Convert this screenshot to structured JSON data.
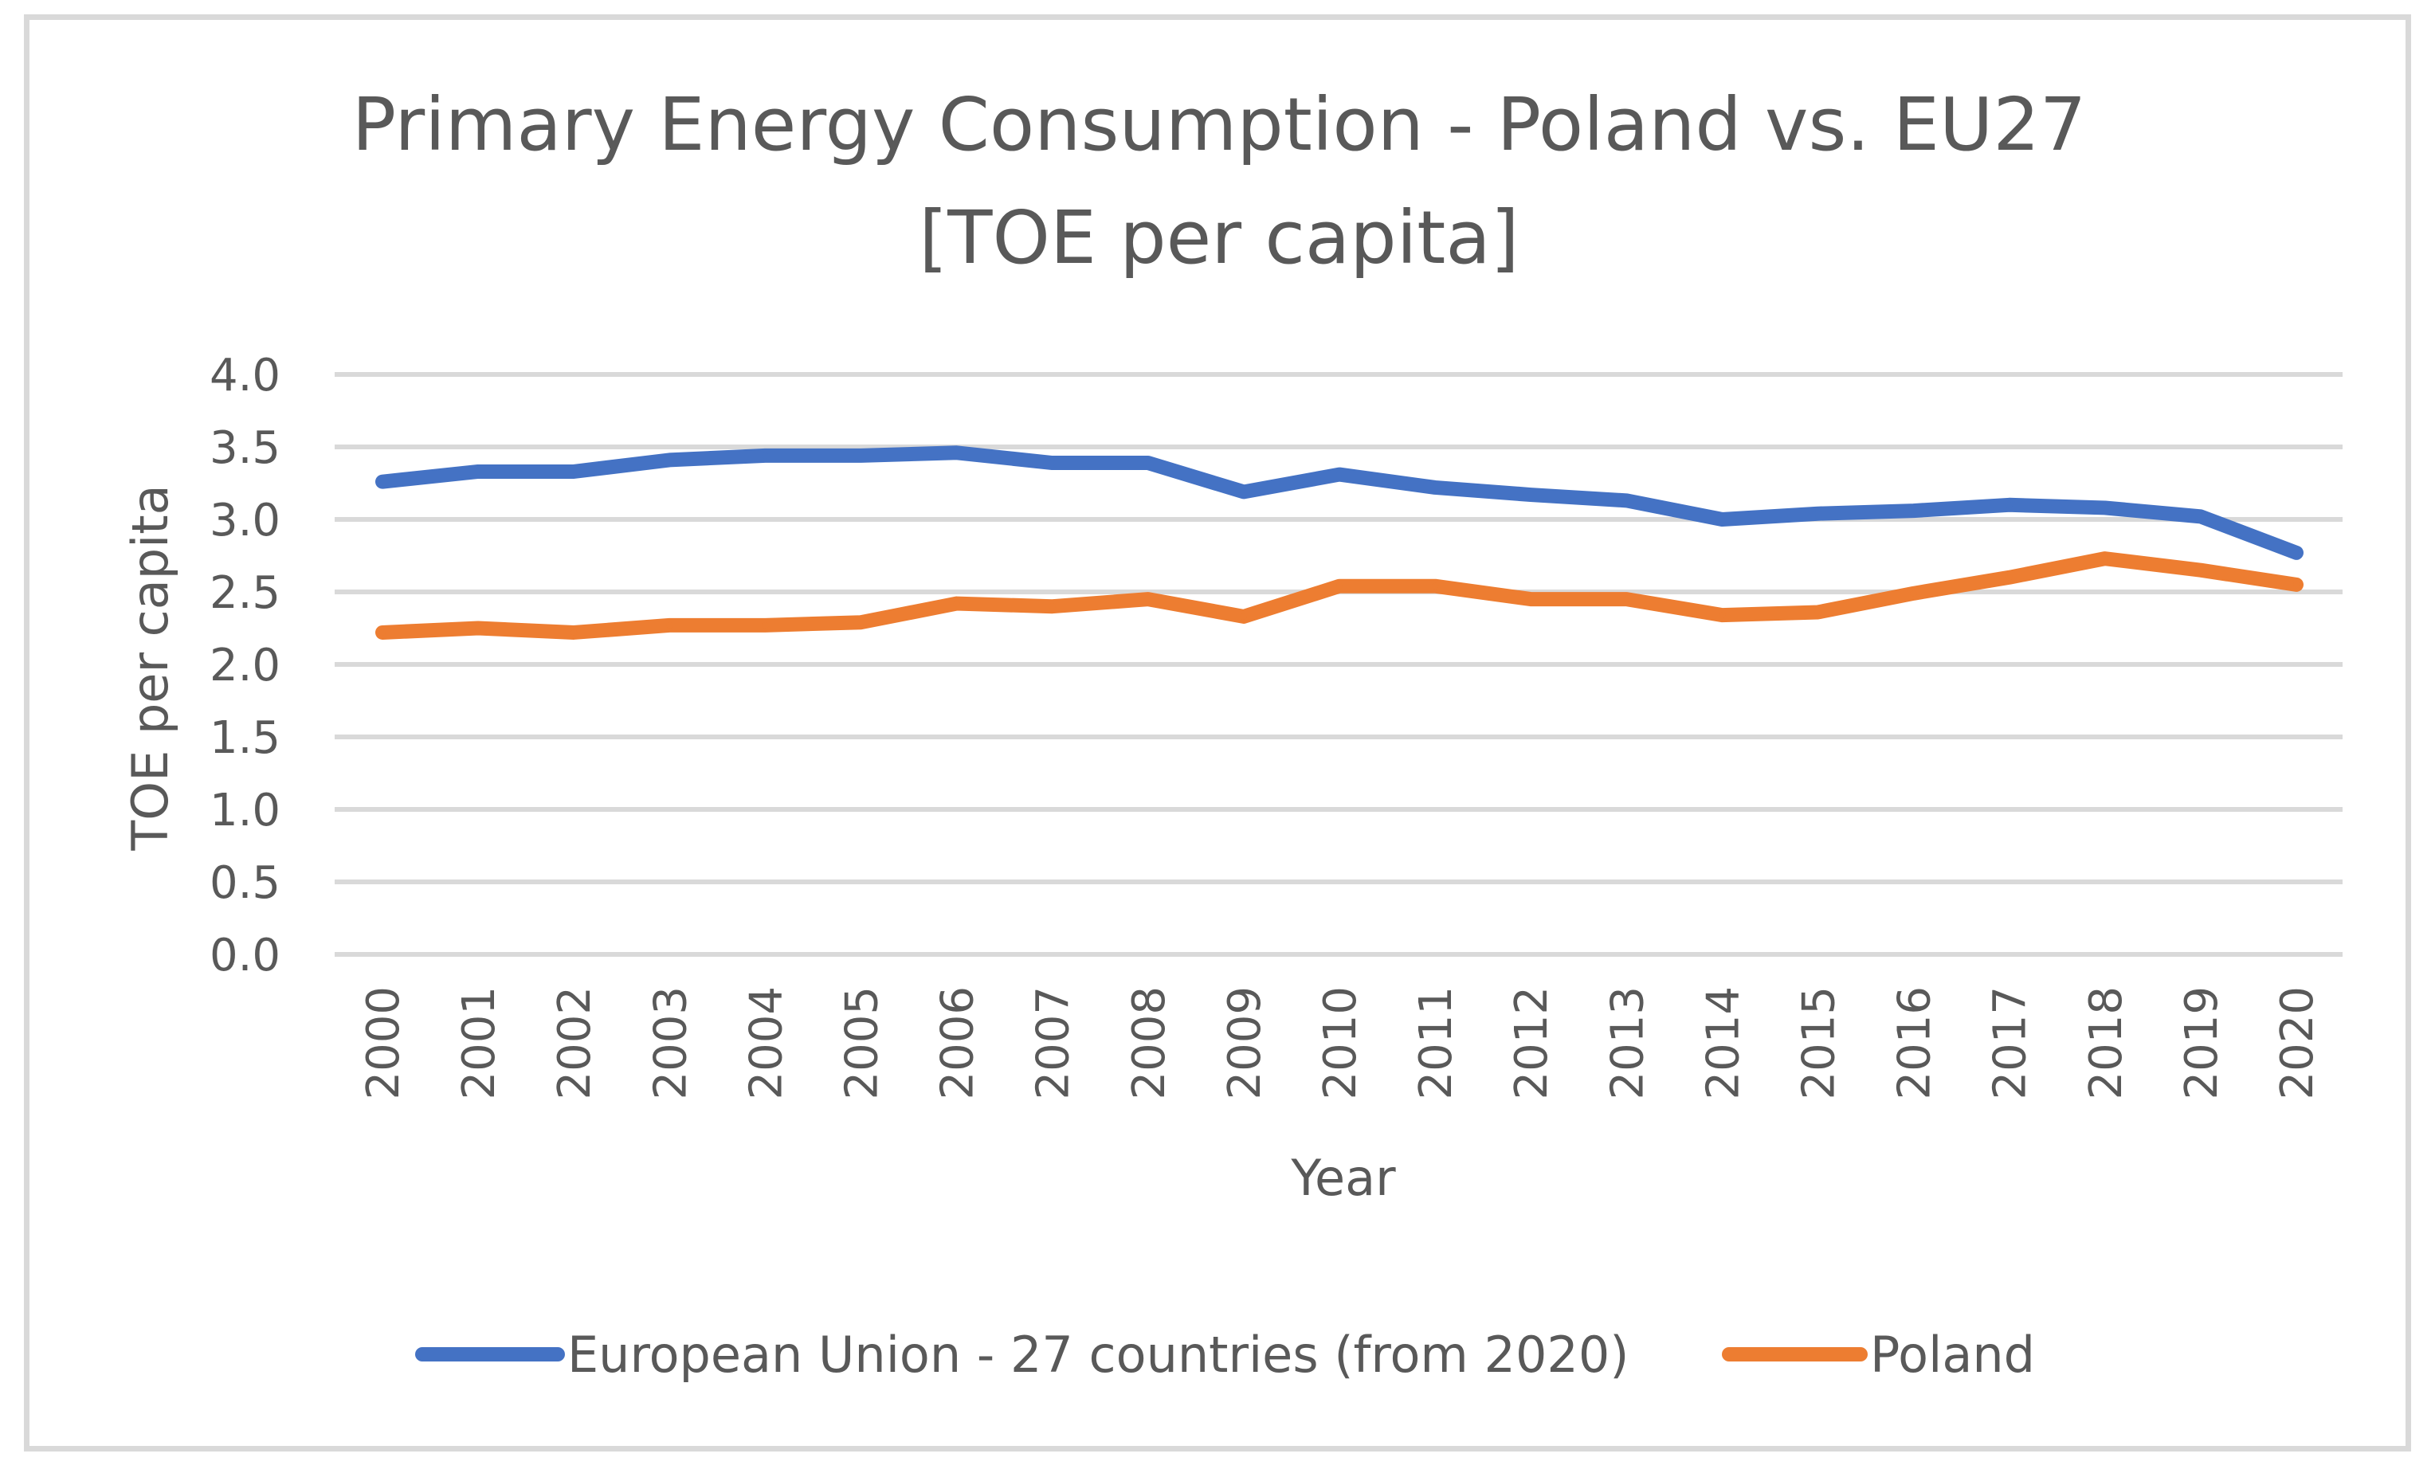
{
  "chart_data": {
    "type": "line",
    "title": "Primary Energy Consumption - Poland vs. EU27",
    "subtitle": "[TOE per capita]",
    "xlabel": "Year",
    "ylabel": "TOE per capita",
    "ylim": [
      0,
      4.0
    ],
    "ytick_step": 0.5,
    "ytick_labels": [
      "0.0",
      "0.5",
      "1.0",
      "1.5",
      "2.0",
      "2.5",
      "3.0",
      "3.5",
      "4.0"
    ],
    "grid": true,
    "legend_position": "bottom",
    "categories": [
      "2000",
      "2001",
      "2002",
      "2003",
      "2004",
      "2005",
      "2006",
      "2007",
      "2008",
      "2009",
      "2010",
      "2011",
      "2012",
      "2013",
      "2014",
      "2015",
      "2016",
      "2017",
      "2018",
      "2019",
      "2020"
    ],
    "series": [
      {
        "name": "European Union - 27 countries (from 2020)",
        "color": "#4472c4",
        "values": [
          3.26,
          3.33,
          3.33,
          3.41,
          3.44,
          3.44,
          3.46,
          3.39,
          3.39,
          3.19,
          3.31,
          3.22,
          3.17,
          3.13,
          3.0,
          3.04,
          3.06,
          3.1,
          3.08,
          3.02,
          2.77
        ]
      },
      {
        "name": "Poland",
        "color": "#ed7d31",
        "values": [
          2.22,
          2.25,
          2.22,
          2.27,
          2.27,
          2.29,
          2.42,
          2.4,
          2.45,
          2.33,
          2.54,
          2.54,
          2.45,
          2.45,
          2.34,
          2.36,
          2.49,
          2.6,
          2.73,
          2.65,
          2.55
        ]
      }
    ]
  }
}
